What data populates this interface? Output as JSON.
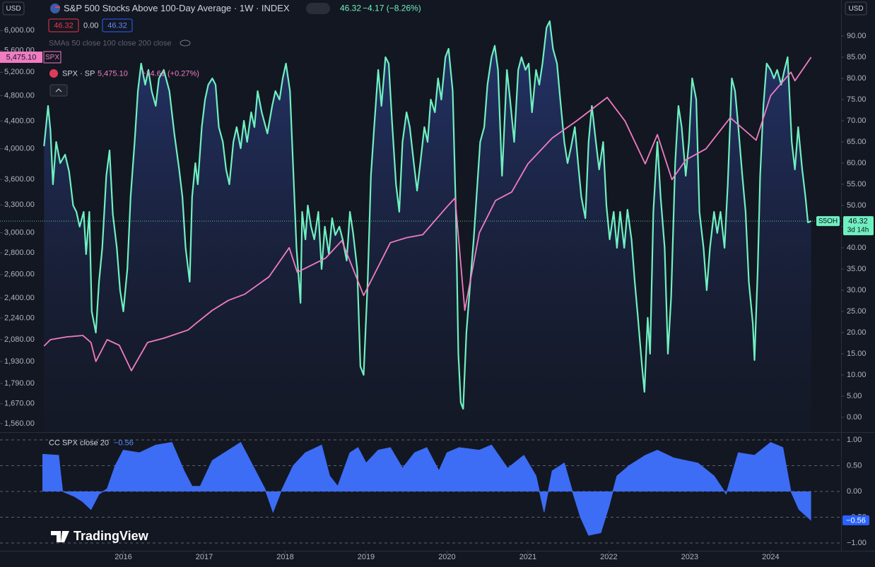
{
  "toolbar": {
    "currency_left": "USD",
    "currency_right": "USD",
    "symbol_title": "S&P 500 Stocks Above 100-Day Average · 1W · INDEX",
    "last": 46.32,
    "change": "−4.17 (−8.26%)",
    "ohlc_low": 46.32,
    "ohlc_mid": "0.00",
    "ohlc_high": 46.32,
    "sma_legend": "SMAs 50 close 100 close 200 close",
    "spx_last": "5,475.10",
    "spx_change": "+14.61 (+0.27%)",
    "spx_tag": "SPX",
    "countdown": "3d 14h",
    "brand": "TradingView"
  },
  "chart_data": [
    {
      "type": "line",
      "xlim": [
        2015.0,
        2024.87
      ],
      "xticks": [
        2016,
        2017,
        2018,
        2019,
        2020,
        2021,
        2022,
        2023,
        2024
      ],
      "ylim": [
        -3.5,
        94.33
      ],
      "yticks": [
        {
          "value": 0,
          "label": "0.00"
        },
        {
          "value": 5,
          "label": "5.00"
        },
        {
          "value": 10,
          "label": "10.00"
        },
        {
          "value": 15,
          "label": "15.00"
        },
        {
          "value": 20,
          "label": "20.00"
        },
        {
          "value": 25,
          "label": "25.00"
        },
        {
          "value": 30,
          "label": "30.00"
        },
        {
          "value": 35,
          "label": "35.00"
        },
        {
          "value": 40,
          "label": "40.00"
        },
        {
          "value": 45,
          "label": "45.00"
        },
        {
          "value": 50,
          "label": "50.00"
        },
        {
          "value": 55,
          "label": "55.00"
        },
        {
          "value": 60,
          "label": "60.00"
        },
        {
          "value": 65,
          "label": "65.00"
        },
        {
          "value": 70,
          "label": "70.00"
        },
        {
          "value": 75,
          "label": "75.00"
        },
        {
          "value": 80,
          "label": "80.00"
        },
        {
          "value": 85,
          "label": "85.00"
        },
        {
          "value": 90,
          "label": "90.00"
        }
      ],
      "y2lim": [
        1515,
        6270
      ],
      "y2_log": true,
      "y2ticks": [
        {
          "value": 1560,
          "label": "1,560.00"
        },
        {
          "value": 1670,
          "label": "1,670.00"
        },
        {
          "value": 1790,
          "label": "1,790.00"
        },
        {
          "value": 1930,
          "label": "1,930.00"
        },
        {
          "value": 2080,
          "label": "2,080.00"
        },
        {
          "value": 2240,
          "label": "2,240.00"
        },
        {
          "value": 2400,
          "label": "2,400.00"
        },
        {
          "value": 2600,
          "label": "2,600.00"
        },
        {
          "value": 2800,
          "label": "2,800.00"
        },
        {
          "value": 3000,
          "label": "3,000.00"
        },
        {
          "value": 3300,
          "label": "3,300.00"
        },
        {
          "value": 3600,
          "label": "3,600.00"
        },
        {
          "value": 4000,
          "label": "4,000.00"
        },
        {
          "value": 4400,
          "label": "4,400.00"
        },
        {
          "value": 4800,
          "label": "4,800.00"
        },
        {
          "value": 5200,
          "label": "5,200.00"
        },
        {
          "value": 5600,
          "label": "5,600.00"
        },
        {
          "value": 6000,
          "label": "6,000.00"
        }
      ],
      "series": [
        {
          "name": "S5OH",
          "color": "#6ff0c0",
          "x": [
            2015.02,
            2015.07,
            2015.1,
            2015.13,
            2015.17,
            2015.22,
            2015.28,
            2015.33,
            2015.38,
            2015.42,
            2015.46,
            2015.51,
            2015.54,
            2015.58,
            2015.61,
            2015.66,
            2015.7,
            2015.74,
            2015.79,
            2015.83,
            2015.87,
            2015.92,
            2015.96,
            2016.0,
            2016.05,
            2016.09,
            2016.14,
            2016.18,
            2016.22,
            2016.27,
            2016.31,
            2016.35,
            2016.4,
            2016.44,
            2016.5,
            2016.57,
            2016.63,
            2016.69,
            2016.73,
            2016.77,
            2016.82,
            2016.85,
            2016.89,
            2016.92,
            2016.97,
            2017.01,
            2017.05,
            2017.1,
            2017.14,
            2017.18,
            2017.23,
            2017.27,
            2017.31,
            2017.36,
            2017.4,
            2017.45,
            2017.49,
            2017.53,
            2017.58,
            2017.62,
            2017.66,
            2017.71,
            2017.78,
            2017.84,
            2017.88,
            2017.93,
            2017.97,
            2018.01,
            2018.06,
            2018.1,
            2018.14,
            2018.19,
            2018.21,
            2018.25,
            2018.28,
            2018.32,
            2018.36,
            2018.41,
            2018.45,
            2018.49,
            2018.54,
            2018.58,
            2018.62,
            2018.67,
            2018.71,
            2018.76,
            2018.8,
            2018.84,
            2018.89,
            2018.93,
            2018.97,
            2019.02,
            2019.06,
            2019.1,
            2019.15,
            2019.19,
            2019.24,
            2019.28,
            2019.32,
            2019.37,
            2019.41,
            2019.45,
            2019.5,
            2019.54,
            2019.59,
            2019.63,
            2019.67,
            2019.72,
            2019.76,
            2019.8,
            2019.85,
            2019.89,
            2019.93,
            2019.98,
            2020.02,
            2020.07,
            2020.11,
            2020.14,
            2020.17,
            2020.2,
            2020.24,
            2020.28,
            2020.33,
            2020.37,
            2020.41,
            2020.46,
            2020.5,
            2020.55,
            2020.59,
            2020.63,
            2020.68,
            2020.7,
            2020.74,
            2020.78,
            2020.83,
            2020.88,
            2020.92,
            2020.97,
            2021.01,
            2021.05,
            2021.1,
            2021.14,
            2021.18,
            2021.23,
            2021.27,
            2021.31,
            2021.36,
            2021.4,
            2021.45,
            2021.49,
            2021.53,
            2021.58,
            2021.62,
            2021.66,
            2021.71,
            2021.75,
            2021.79,
            2021.84,
            2021.88,
            2021.93,
            2021.97,
            2022.01,
            2022.06,
            2022.1,
            2022.14,
            2022.19,
            2022.23,
            2022.28,
            2022.32,
            2022.36,
            2022.41,
            2022.44,
            2022.48,
            2022.51,
            2022.55,
            2022.6,
            2022.64,
            2022.69,
            2022.73,
            2022.77,
            2022.82,
            2022.86,
            2022.9,
            2022.95,
            2022.99,
            2023.03,
            2023.08,
            2023.12,
            2023.17,
            2023.21,
            2023.25,
            2023.3,
            2023.34,
            2023.38,
            2023.43,
            2023.47,
            2023.52,
            2023.56,
            2023.6,
            2023.65,
            2023.69,
            2023.73,
            2023.78,
            2023.8,
            2023.84,
            2023.87,
            2023.91,
            2023.95,
            2024.0,
            2024.04,
            2024.08,
            2024.13,
            2024.17,
            2024.21,
            2024.26,
            2024.3,
            2024.34,
            2024.39,
            2024.43,
            2024.46,
            2024.5
          ],
          "values": [
            64,
            73.5,
            67.7,
            55,
            65,
            60,
            62,
            58,
            50,
            48.5,
            45,
            48.5,
            38.5,
            48.5,
            25,
            20,
            32,
            40,
            57,
            63,
            48,
            40,
            30,
            25,
            35,
            52,
            65,
            77,
            83.5,
            78.5,
            82,
            77,
            73.5,
            80,
            82,
            77,
            67,
            58.5,
            52,
            40,
            32,
            52,
            60,
            55,
            68.5,
            75,
            78.5,
            80,
            78.5,
            68.5,
            65,
            58.5,
            55,
            65,
            68.5,
            63.5,
            70,
            65,
            72,
            68.5,
            77,
            72,
            67,
            73.5,
            77,
            75,
            80,
            83.5,
            77,
            58.5,
            40,
            27,
            48.5,
            42,
            50,
            45,
            42,
            48.5,
            35,
            45,
            38.5,
            47,
            43,
            45,
            42,
            37,
            48.5,
            43.5,
            35,
            12,
            10,
            32,
            57,
            68.5,
            82,
            73.5,
            85,
            83.5,
            70,
            55,
            48.5,
            65,
            72,
            68.5,
            60,
            53.5,
            60,
            68.5,
            65,
            75,
            72,
            80,
            75,
            85,
            87,
            77,
            48.5,
            15,
            3.5,
            2,
            20,
            30,
            42,
            53.5,
            65,
            68.5,
            78.5,
            85,
            87.7,
            82,
            57,
            65,
            82,
            75,
            65,
            82,
            85,
            82,
            83.5,
            72,
            82,
            78.5,
            83.5,
            92,
            93.5,
            87,
            83.5,
            75,
            65,
            60,
            63.5,
            68.5,
            60,
            52,
            47,
            65,
            73.5,
            65,
            58.5,
            65,
            50,
            42,
            48.5,
            40,
            48.5,
            40,
            49,
            42,
            32,
            23.5,
            12,
            6,
            23.5,
            15,
            48.5,
            65,
            52,
            40,
            15,
            28.5,
            60,
            73.5,
            68.5,
            57,
            65,
            80,
            75,
            48.5,
            40,
            30,
            40,
            48.5,
            43.5,
            48.5,
            40,
            55,
            80,
            77,
            68.5,
            57,
            48.5,
            32,
            22,
            13.5,
            35,
            57,
            73.5,
            83.5,
            82,
            80,
            82,
            78.5,
            82,
            85,
            65,
            58.5,
            68.5,
            58.5,
            52,
            46,
            46.32
          ]
        },
        {
          "name": "SPX · SP",
          "color": "#f07cc2",
          "axis": "y2",
          "x": [
            2015.02,
            2015.1,
            2015.3,
            2015.5,
            2015.6,
            2015.66,
            2015.8,
            2015.95,
            2016.1,
            2016.3,
            2016.5,
            2016.8,
            2016.9,
            2017.1,
            2017.3,
            2017.5,
            2017.8,
            2018.05,
            2018.15,
            2018.5,
            2018.7,
            2018.97,
            2019.3,
            2019.5,
            2019.7,
            2020.0,
            2020.1,
            2020.22,
            2020.4,
            2020.6,
            2020.8,
            2021.0,
            2021.3,
            2021.6,
            2021.98,
            2022.2,
            2022.45,
            2022.6,
            2022.78,
            2022.95,
            2023.2,
            2023.5,
            2023.82,
            2024.0,
            2024.25,
            2024.3,
            2024.5
          ],
          "values": [
            2035,
            2080,
            2100,
            2110,
            2060,
            1930,
            2080,
            2040,
            1870,
            2060,
            2090,
            2150,
            2200,
            2300,
            2380,
            2430,
            2580,
            2850,
            2620,
            2750,
            2920,
            2420,
            2900,
            2950,
            2980,
            3280,
            3380,
            2300,
            3000,
            3350,
            3450,
            3800,
            4150,
            4400,
            4770,
            4400,
            3800,
            4200,
            3600,
            3850,
            4000,
            4450,
            4120,
            4800,
            5200,
            5050,
            5475.1
          ]
        }
      ]
    },
    {
      "type": "area",
      "title": "CC SPX close 20",
      "color": "#3d6df5",
      "xlim": [
        2015.0,
        2024.87
      ],
      "ylim": [
        -1.15,
        1.15
      ],
      "yticks": [
        {
          "value": 1,
          "label": "1.00"
        },
        {
          "value": 0.5,
          "label": "0.50"
        },
        {
          "value": 0,
          "label": "0.00"
        },
        {
          "value": -0.5,
          "label": "−0.50"
        },
        {
          "value": -1,
          "label": "−1.00"
        }
      ],
      "x": [
        2015.0,
        2015.2,
        2015.25,
        2015.4,
        2015.5,
        2015.6,
        2015.7,
        2015.8,
        2015.9,
        2016.0,
        2016.2,
        2016.4,
        2016.6,
        2016.75,
        2016.85,
        2016.95,
        2017.1,
        2017.3,
        2017.45,
        2017.6,
        2017.75,
        2017.85,
        2017.95,
        2018.1,
        2018.25,
        2018.45,
        2018.55,
        2018.65,
        2018.8,
        2018.9,
        2019.0,
        2019.15,
        2019.3,
        2019.45,
        2019.6,
        2019.75,
        2019.9,
        2020.0,
        2020.15,
        2020.4,
        2020.55,
        2020.75,
        2020.95,
        2021.1,
        2021.2,
        2021.3,
        2021.45,
        2021.55,
        2021.65,
        2021.75,
        2021.9,
        2022.0,
        2022.1,
        2022.25,
        2022.45,
        2022.6,
        2022.8,
        2022.95,
        2023.1,
        2023.3,
        2023.45,
        2023.6,
        2023.8,
        2024.0,
        2024.15,
        2024.25,
        2024.35,
        2024.5
      ],
      "values": [
        0.72,
        0.7,
        0,
        -0.1,
        -0.2,
        -0.35,
        -0.05,
        0.05,
        0.5,
        0.8,
        0.75,
        0.9,
        0.95,
        0.4,
        0.1,
        0.1,
        0.6,
        0.8,
        0.95,
        0.5,
        0.05,
        -0.4,
        0,
        0.5,
        0.75,
        0.9,
        0.3,
        0.1,
        0.75,
        0.85,
        0.55,
        0.8,
        0.85,
        0.45,
        0.75,
        0.85,
        0.4,
        0.75,
        0.85,
        0.8,
        0.9,
        0.45,
        0.7,
        0.3,
        -0.4,
        0.4,
        0.55,
        0,
        -0.5,
        -0.85,
        -0.8,
        -0.3,
        0.3,
        0.5,
        0.7,
        0.8,
        0.65,
        0.6,
        0.55,
        0.3,
        -0.05,
        0.75,
        0.7,
        0.95,
        0.85,
        0,
        -0.35,
        -0.56
      ],
      "last_label": "−0.56"
    }
  ]
}
